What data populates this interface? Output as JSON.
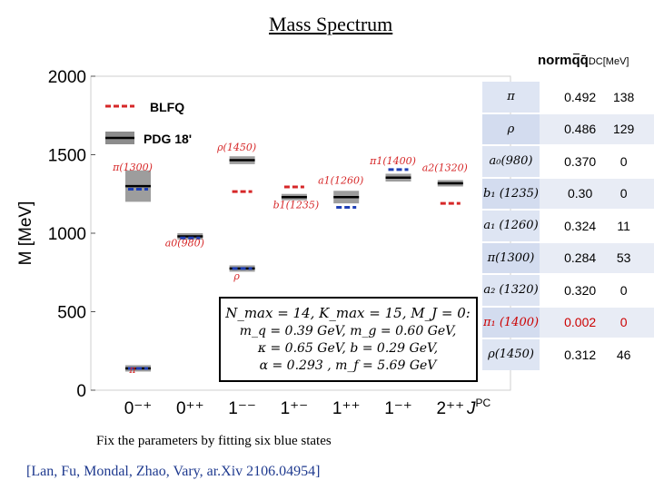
{
  "slide": {
    "title": "Mass Spectrum",
    "footnote": "Fix the parameters by fitting six blue states",
    "citation": "[Lan, Fu, Mondal, Zhao, Vary, ar.Xiv 2106.04954]"
  },
  "chart_data": {
    "type": "scatter",
    "title": "",
    "ylabel": "M [MeV]",
    "xlabel": "J^PC",
    "ylim": [
      0,
      2000
    ],
    "y_ticks": [
      0,
      500,
      1000,
      1500,
      2000
    ],
    "categories": [
      "0⁻⁺",
      "0⁺⁺",
      "1⁻⁻",
      "1⁺⁻",
      "1⁺⁺",
      "1⁻⁺",
      "2⁺⁺"
    ],
    "legend": [
      {
        "label": "BLFQ",
        "style": "red-dashed"
      },
      {
        "label": "PDG 18'",
        "style": "black-with-gray-band"
      }
    ],
    "grid": false,
    "series": [
      {
        "name": "PDG 18'",
        "points": [
          {
            "state": "π",
            "x": 0,
            "y": 139,
            "err": 0
          },
          {
            "state": "π(1300)",
            "x": 0,
            "y": 1300,
            "err": 100
          },
          {
            "state": "a0(980)",
            "x": 1,
            "y": 980,
            "err": 20
          },
          {
            "state": "ρ",
            "x": 2,
            "y": 775,
            "err": 0
          },
          {
            "state": "ρ(1450)",
            "x": 2,
            "y": 1465,
            "err": 25
          },
          {
            "state": "b1(1235)",
            "x": 3,
            "y": 1230,
            "err": 3
          },
          {
            "state": "a1(1260)",
            "x": 4,
            "y": 1230,
            "err": 40
          },
          {
            "state": "π1(1400)",
            "x": 5,
            "y": 1354,
            "err": 25
          },
          {
            "state": "a2(1320)",
            "x": 6,
            "y": 1318,
            "err": 1
          }
        ]
      },
      {
        "name": "BLFQ",
        "points": [
          {
            "x": 0,
            "y": 139,
            "fit": true
          },
          {
            "x": 0,
            "y": 1280,
            "fit": true
          },
          {
            "x": 1,
            "y": 970,
            "fit": true
          },
          {
            "x": 2,
            "y": 775,
            "fit": true
          },
          {
            "x": 2,
            "y": 1265,
            "fit": false
          },
          {
            "x": 3,
            "y": 1295,
            "fit": false
          },
          {
            "x": 4,
            "y": 1165,
            "fit": true
          },
          {
            "x": 5,
            "y": 1405,
            "fit": true
          },
          {
            "x": 6,
            "y": 1190,
            "fit": false
          }
        ]
      }
    ],
    "state_labels": [
      {
        "text": "π",
        "x": 0,
        "y": 110
      },
      {
        "text": "π(1300)",
        "x": 0,
        "y": 1400
      },
      {
        "text": "a0(980)",
        "x": 1,
        "y": 915
      },
      {
        "text": "ρ",
        "x": 2,
        "y": 705
      },
      {
        "text": "ρ(1450)",
        "x": 2,
        "y": 1525
      },
      {
        "text": "b1(1235)",
        "x": 3,
        "y": 1160
      },
      {
        "text": "a1(1260)",
        "x": 4,
        "y": 1315
      },
      {
        "text": "π1(1400)",
        "x": 5,
        "y": 1440
      },
      {
        "text": "a2(1320)",
        "x": 6,
        "y": 1395
      }
    ],
    "param_box": {
      "line1": "N_max = 14, K_max = 15, M_J = 0:",
      "line2": "m_q = 0.39 GeV, m_g = 0.60 GeV,",
      "line3": "κ = 0.65 GeV, b = 0.29 GeV,",
      "line4": "α = 0.293 , m_f = 5.69 GeV"
    }
  },
  "table": {
    "header": "normqq̄",
    "header_unit": "DC[MeV]",
    "rows": [
      {
        "state": "π",
        "value": "0.492",
        "deviation": "138",
        "highlight": false
      },
      {
        "state": "ρ",
        "value": "0.486",
        "deviation": "129",
        "highlight": false
      },
      {
        "state": "a₀(980)",
        "value": "0.370",
        "deviation": "0",
        "highlight": false
      },
      {
        "state": "b₁ (1235)",
        "value": "0.30",
        "deviation": "0",
        "highlight": false
      },
      {
        "state": "a₁ (1260)",
        "value": "0.324",
        "deviation": "11",
        "highlight": false
      },
      {
        "state": "π(1300)",
        "value": "0.284",
        "deviation": "53",
        "highlight": false
      },
      {
        "state": "a₂ (1320)",
        "value": "0.320",
        "deviation": "0",
        "highlight": false
      },
      {
        "state": "π₁ (1400)",
        "value": "0.002",
        "deviation": "0",
        "highlight": true
      },
      {
        "state": "ρ(1450)",
        "value": "0.312",
        "deviation": "46",
        "highlight": false
      }
    ]
  },
  "colors": {
    "blfq": "#d62728",
    "fitted": "#1f3fb5",
    "pdg": "#000000",
    "band": "#8c8c8c",
    "table_hl": "#cc0000"
  }
}
